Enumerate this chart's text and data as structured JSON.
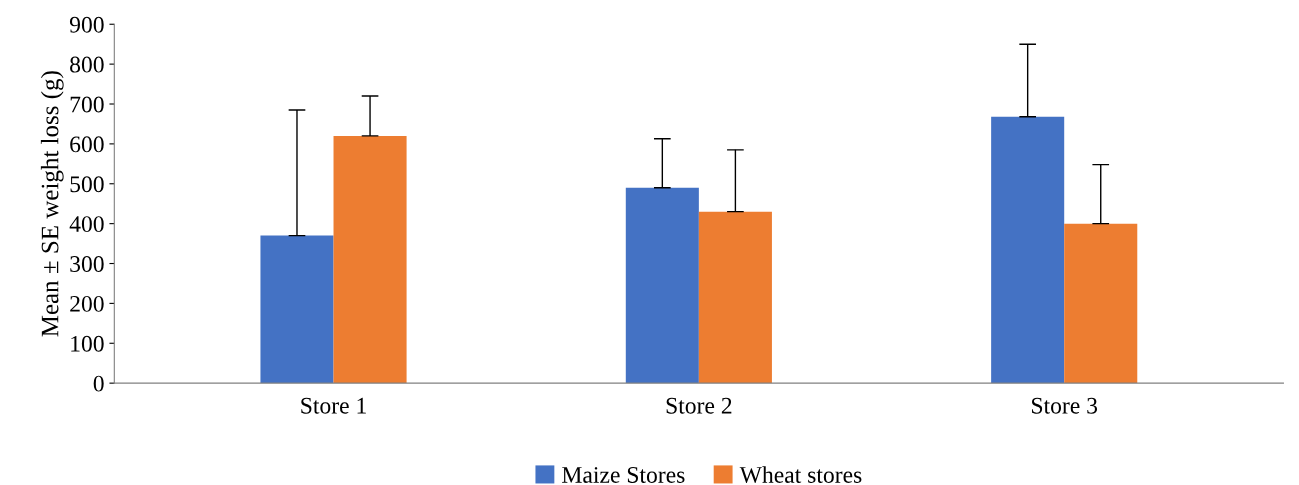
{
  "chart_data": {
    "type": "bar",
    "ylabel": "Mean ± SE weight loss (g)",
    "categories": [
      "Store 1",
      "Store 2",
      "Store 3"
    ],
    "series": [
      {
        "name": "Maize Stores",
        "color": "#4472c4",
        "values": [
          370,
          490,
          668
        ],
        "errors": [
          [
            370,
            685
          ],
          [
            490,
            613
          ],
          [
            668,
            850
          ]
        ]
      },
      {
        "name": "Wheat stores",
        "color": "#ed7d31",
        "values": [
          620,
          430,
          400
        ],
        "errors": [
          [
            620,
            720
          ],
          [
            430,
            585
          ],
          [
            400,
            548
          ]
        ]
      }
    ],
    "ylim": [
      0,
      900
    ],
    "yticks": [
      0,
      100,
      200,
      300,
      400,
      500,
      600,
      700,
      800,
      900
    ],
    "grid": false,
    "legend": "bottom"
  }
}
